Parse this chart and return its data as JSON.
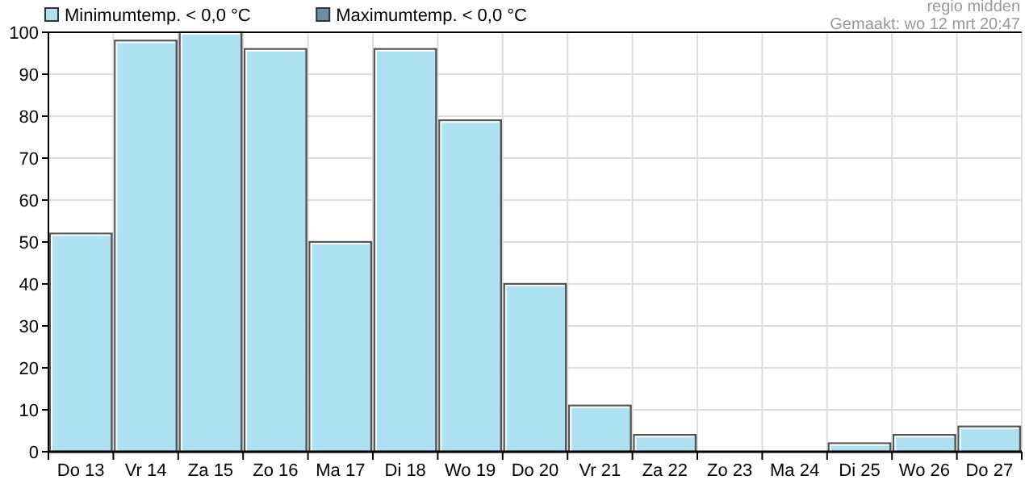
{
  "chart_data": {
    "type": "bar",
    "annotations": [
      "regio midden",
      "Gemaakt: wo 12 mrt 20:47"
    ],
    "categories": [
      "Do 13",
      "Vr 14",
      "Za 15",
      "Zo 16",
      "Ma 17",
      "Di 18",
      "Wo 19",
      "Do 20",
      "Vr 21",
      "Za 22",
      "Zo 23",
      "Ma 24",
      "Di 25",
      "Wo 26",
      "Do 27"
    ],
    "series": [
      {
        "name": "Minimumtemp. < 0,0 °C",
        "color": "#aee1f2",
        "values": [
          52,
          98,
          100,
          96,
          50,
          96,
          79,
          40,
          11,
          4,
          0,
          0,
          2,
          4,
          6
        ]
      },
      {
        "name": "Maximumtemp. < 0,0 °C",
        "color": "#6b8fa6",
        "values": [
          null,
          null,
          null,
          null,
          null,
          null,
          null,
          null,
          null,
          null,
          null,
          null,
          null,
          null,
          null
        ]
      }
    ],
    "ylim": [
      0,
      100
    ],
    "yticks": [
      0,
      10,
      20,
      30,
      40,
      50,
      60,
      70,
      80,
      90,
      100
    ],
    "grid": true,
    "legend": "top left"
  }
}
